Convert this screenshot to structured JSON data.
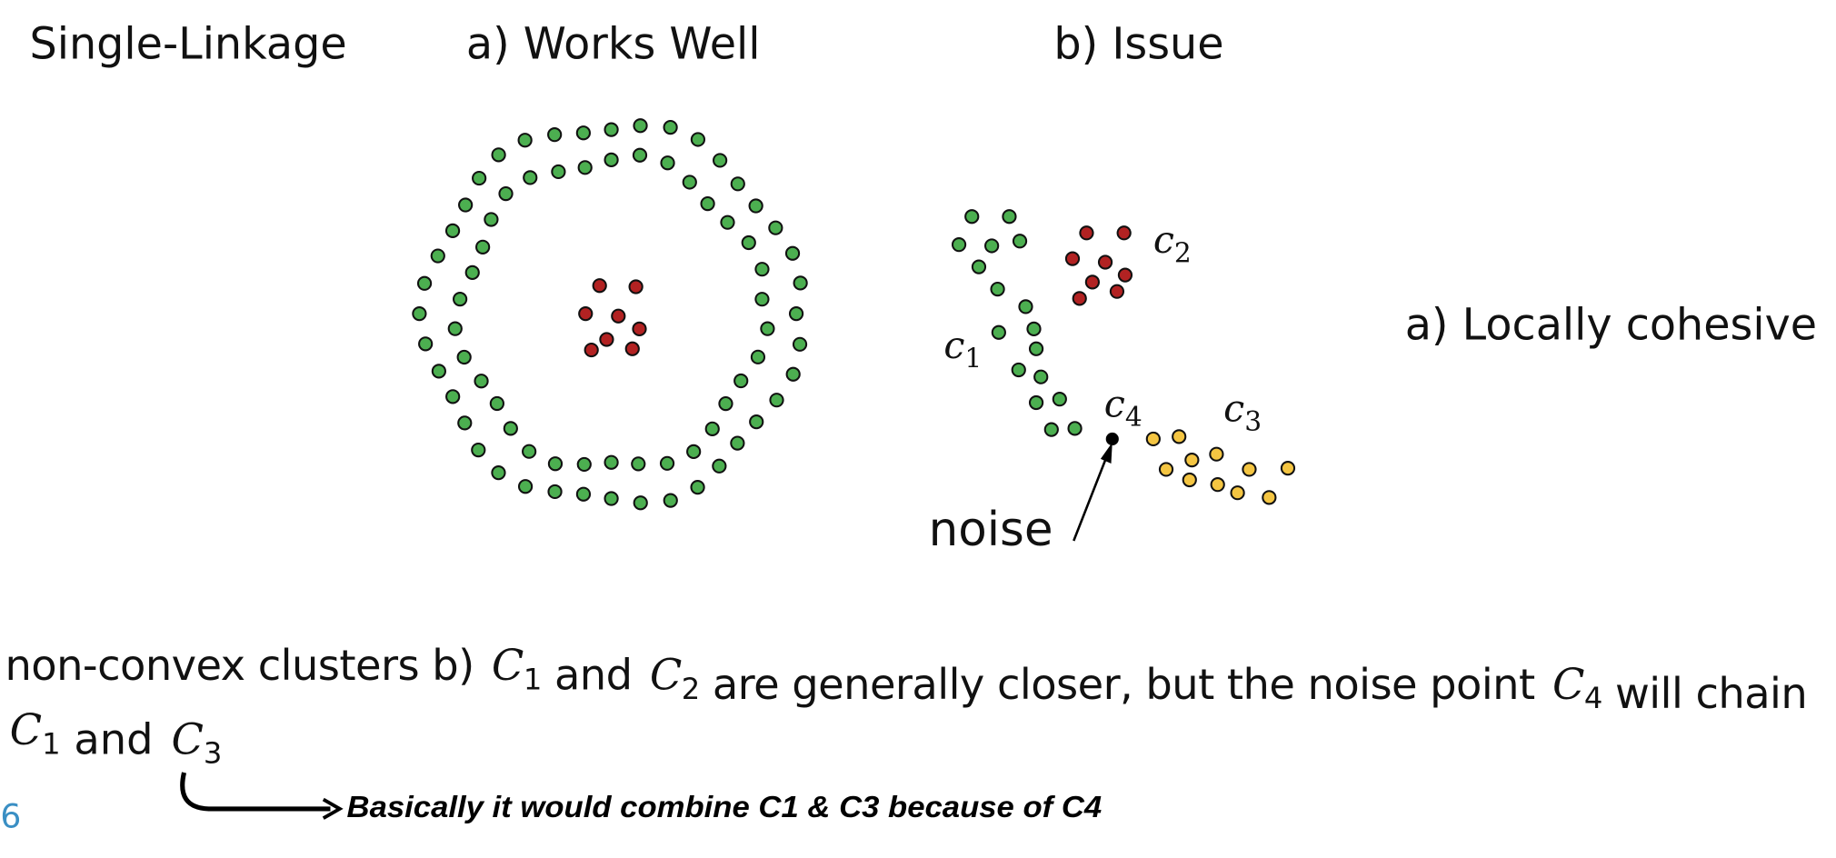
{
  "slide": {
    "title": "Single-Linkage",
    "panel_a_title": "a) Works Well",
    "panel_b_title": "b) Issue",
    "cluster_labels": [
      {
        "var": "c",
        "sub": "1"
      },
      {
        "var": "c",
        "sub": "2"
      },
      {
        "var": "c",
        "sub": "3"
      },
      {
        "var": "c",
        "sub": "4"
      }
    ],
    "noise_label": "noise",
    "side_note": "a) Locally cohesive",
    "body": [
      [
        "non-convex clusters b) ",
        {
          "var": "C",
          "sub": "1"
        },
        " and ",
        {
          "var": "C",
          "sub": "2"
        },
        " are generally closer, but the noise point ",
        {
          "var": "C",
          "sub": "4"
        },
        " will chain"
      ],
      [
        {
          "var": "C",
          "sub": "1"
        },
        " and ",
        {
          "var": "C",
          "sub": "3"
        }
      ]
    ],
    "page_number": "6",
    "handwritten_note": "Basically it would combine C1 & C3 because of C4"
  }
}
